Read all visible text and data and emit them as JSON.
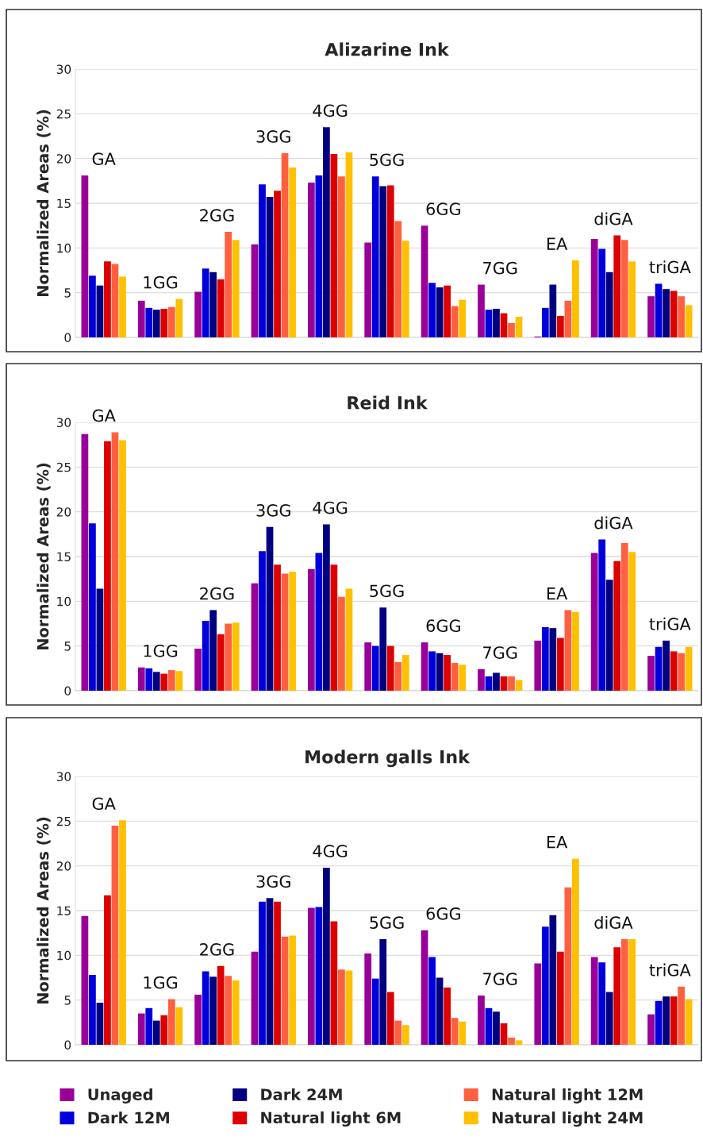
{
  "chart_data": [
    {
      "type": "bar",
      "title": "Alizarine Ink",
      "ylabel": "Normalized Areas (%)",
      "categories": [
        "GA",
        "1GG",
        "2GG",
        "3GG",
        "4GG",
        "5GG",
        "6GG",
        "7GG",
        "EA",
        "diGA",
        "triGA"
      ],
      "ylim": [
        0,
        30
      ],
      "yticks": [
        0,
        5,
        10,
        15,
        20,
        25,
        30
      ],
      "grid": "y",
      "tick_labels": "y",
      "legend": "bottom",
      "series": [
        {
          "name": "Unaged",
          "color": "#990099",
          "values": [
            18.1,
            4.1,
            5.1,
            10.4,
            17.3,
            10.6,
            12.5,
            5.9,
            0.1,
            11.0,
            4.6
          ]
        },
        {
          "name": "Dark 12M",
          "color": "#0000dd",
          "values": [
            6.9,
            3.3,
            7.7,
            17.1,
            18.1,
            18.0,
            6.1,
            3.1,
            3.3,
            9.9,
            6.0
          ]
        },
        {
          "name": "Dark 24M",
          "color": "#000080",
          "values": [
            5.8,
            3.1,
            7.3,
            15.7,
            23.5,
            16.9,
            5.6,
            3.2,
            5.9,
            7.3,
            5.4
          ]
        },
        {
          "name": "Natural light 6M",
          "color": "#dd0000",
          "values": [
            8.5,
            3.2,
            6.5,
            16.4,
            20.5,
            17.0,
            5.8,
            2.7,
            2.4,
            11.4,
            5.2
          ]
        },
        {
          "name": "Natural light 12M",
          "color": "#ff6040",
          "values": [
            8.2,
            3.4,
            11.8,
            20.6,
            18.0,
            13.0,
            3.5,
            1.6,
            4.1,
            10.9,
            4.6
          ]
        },
        {
          "name": "Natural light 24M",
          "color": "#ffc000",
          "values": [
            6.8,
            4.3,
            10.9,
            19.0,
            20.7,
            10.8,
            4.2,
            2.3,
            8.6,
            8.5,
            3.6
          ]
        }
      ]
    },
    {
      "type": "bar",
      "title": "Reid Ink",
      "ylabel": "Normalized Areas (%)",
      "categories": [
        "GA",
        "1GG",
        "2GG",
        "3GG",
        "4GG",
        "5GG",
        "6GG",
        "7GG",
        "EA",
        "diGA",
        "triGA"
      ],
      "ylim": [
        0,
        30
      ],
      "yticks": [
        0,
        5,
        10,
        15,
        20,
        25,
        30
      ],
      "grid": "y",
      "tick_labels": "y",
      "series": [
        {
          "color": "#990099",
          "values": [
            28.7,
            2.6,
            4.7,
            12.0,
            13.6,
            5.4,
            5.4,
            2.4,
            5.6,
            15.4,
            3.9
          ]
        },
        {
          "color": "#0000dd",
          "values": [
            18.7,
            2.5,
            7.8,
            15.6,
            15.4,
            5.0,
            4.4,
            1.6,
            7.1,
            16.9,
            4.9
          ]
        },
        {
          "color": "#000080",
          "values": [
            11.4,
            2.1,
            9.0,
            18.3,
            18.6,
            9.3,
            4.2,
            2.0,
            7.0,
            12.4,
            5.6
          ]
        },
        {
          "color": "#dd0000",
          "values": [
            27.9,
            1.9,
            6.3,
            14.1,
            14.1,
            5.0,
            4.0,
            1.6,
            5.9,
            14.5,
            4.4
          ]
        },
        {
          "color": "#ff6040",
          "values": [
            28.9,
            2.3,
            7.5,
            13.1,
            10.5,
            3.2,
            3.1,
            1.6,
            9.0,
            16.5,
            4.2
          ]
        },
        {
          "color": "#ffc000",
          "values": [
            28.0,
            2.2,
            7.6,
            13.3,
            11.4,
            4.0,
            2.9,
            1.2,
            8.8,
            15.5,
            4.9
          ]
        }
      ]
    },
    {
      "type": "bar",
      "title": "Modern galls Ink",
      "ylabel": "Normalized Areas (%)",
      "categories": [
        "GA",
        "1GG",
        "2GG",
        "3GG",
        "4GG",
        "5GG",
        "6GG",
        "7GG",
        "EA",
        "diGA",
        "triGA"
      ],
      "ylim": [
        0,
        30
      ],
      "yticks": [
        0,
        5,
        10,
        15,
        20,
        25,
        30
      ],
      "grid": "y",
      "tick_labels": "y",
      "series": [
        {
          "color": "#990099",
          "values": [
            14.4,
            3.5,
            5.6,
            10.4,
            15.3,
            10.2,
            12.8,
            5.5,
            9.1,
            9.8,
            3.4
          ]
        },
        {
          "color": "#0000dd",
          "values": [
            7.8,
            4.1,
            8.2,
            16.0,
            15.4,
            7.4,
            9.8,
            4.1,
            13.2,
            9.2,
            4.9
          ]
        },
        {
          "color": "#000080",
          "values": [
            4.7,
            2.7,
            7.6,
            16.4,
            19.8,
            11.8,
            7.5,
            3.7,
            14.5,
            5.9,
            5.4
          ]
        },
        {
          "color": "#dd0000",
          "values": [
            16.7,
            3.3,
            8.8,
            16.0,
            13.8,
            5.9,
            6.4,
            2.4,
            10.4,
            10.9,
            5.4
          ]
        },
        {
          "color": "#ff6040",
          "values": [
            24.5,
            5.1,
            7.7,
            12.1,
            8.4,
            2.7,
            3.0,
            0.8,
            17.6,
            11.8,
            6.5
          ]
        },
        {
          "color": "#ffc000",
          "values": [
            25.1,
            4.2,
            7.2,
            12.2,
            8.3,
            2.2,
            2.6,
            0.5,
            20.8,
            11.8,
            5.1
          ]
        }
      ]
    }
  ]
}
